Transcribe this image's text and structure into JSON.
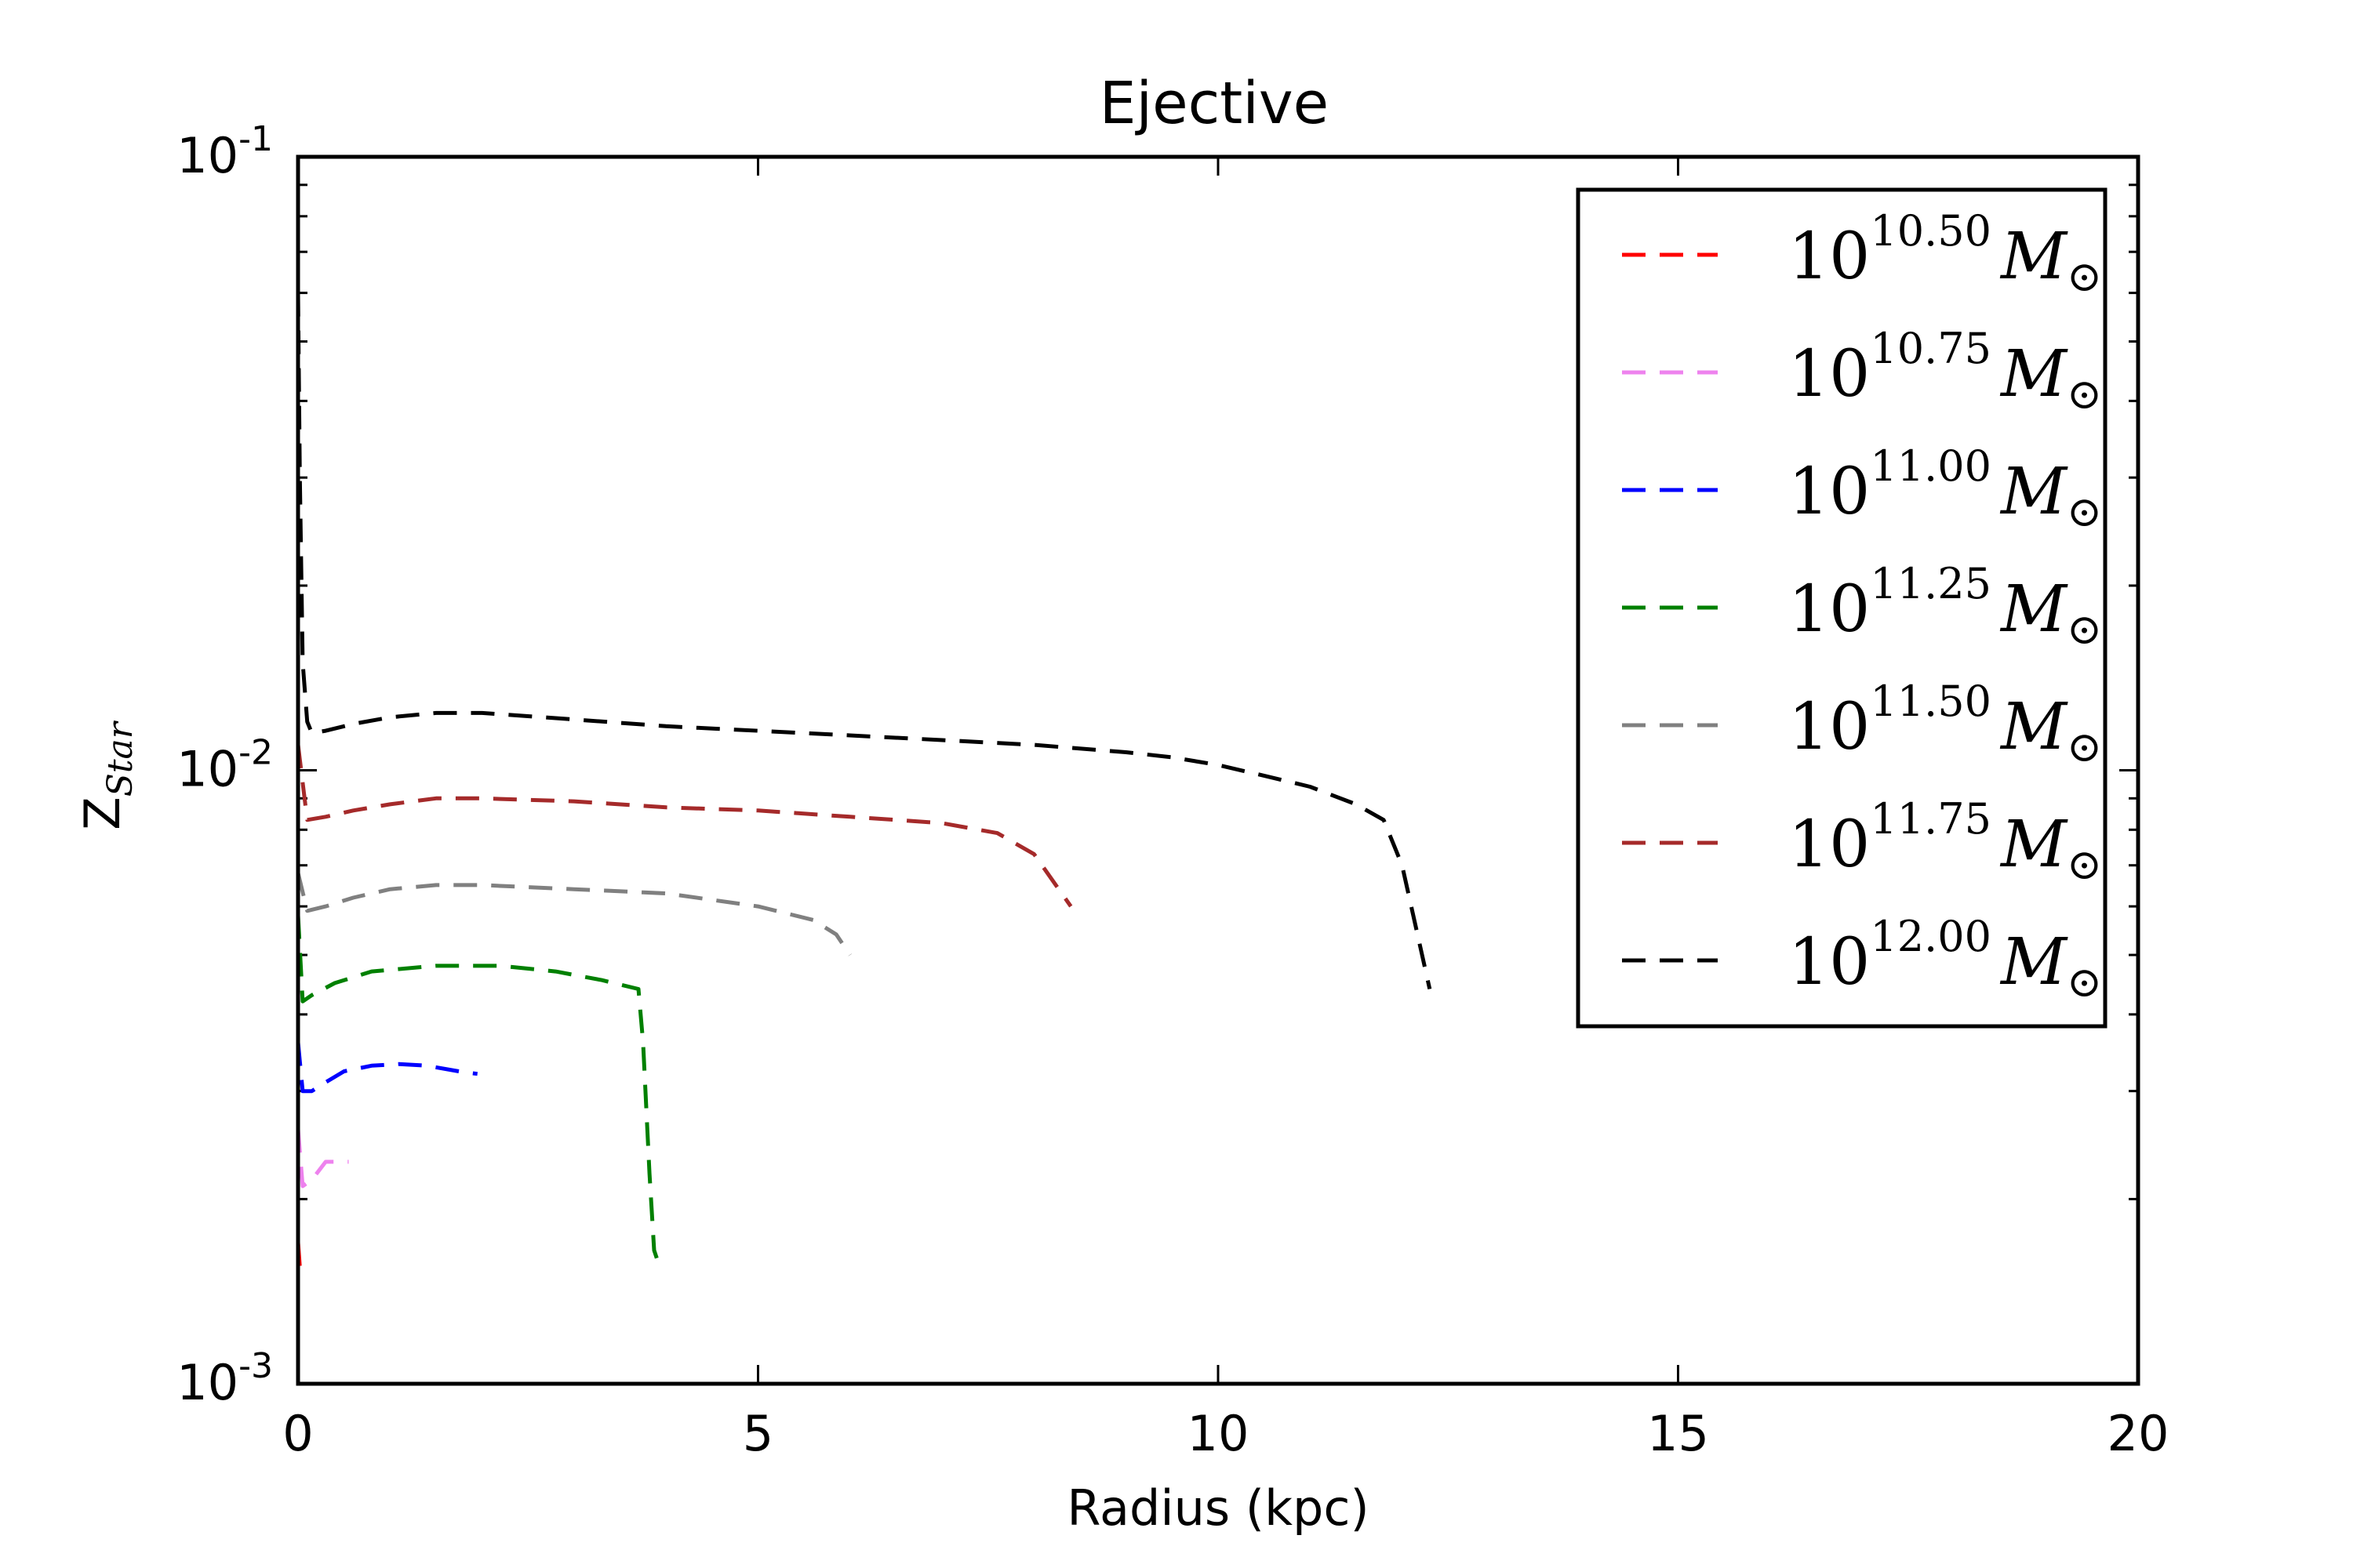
{
  "chart_data": {
    "type": "line",
    "title": "Ejective",
    "xlabel": "Radius (kpc)",
    "ylabel": {
      "base": "Z",
      "subscript": "Star"
    },
    "xlim": [
      0,
      20
    ],
    "ylim": [
      0.001,
      0.1
    ],
    "yscale": "log",
    "x_ticks": [
      {
        "value": 0,
        "label": "0"
      },
      {
        "value": 5,
        "label": "5"
      },
      {
        "value": 10,
        "label": "10"
      },
      {
        "value": 15,
        "label": "15"
      },
      {
        "value": 20,
        "label": "20"
      }
    ],
    "y_ticks": [
      {
        "value": 0.001,
        "base": "10",
        "exp": "-3"
      },
      {
        "value": 0.01,
        "base": "10",
        "exp": "-2"
      },
      {
        "value": 0.1,
        "base": "10",
        "exp": "-1"
      }
    ],
    "grid": false,
    "line_style": "dashed",
    "legend_position": "top-right",
    "series": [
      {
        "name": "10^{10.50} M_⊙",
        "base": "10",
        "exp": "10.50",
        "unit": "M",
        "unit_sub": "⊙",
        "color": "#ff0000",
        "x": [
          0.0,
          0.02,
          0.05
        ],
        "y": [
          0.0017,
          0.00155,
          0.00148
        ]
      },
      {
        "name": "10^{10.75} M_⊙",
        "base": "10",
        "exp": "10.75",
        "unit": "M",
        "unit_sub": "⊙",
        "color": "#ee82ee",
        "x": [
          0.0,
          0.05,
          0.15,
          0.3,
          0.45,
          0.55
        ],
        "y": [
          0.0026,
          0.0021,
          0.00215,
          0.0023,
          0.0023,
          0.0023
        ]
      },
      {
        "name": "10^{11.00} M_⊙",
        "base": "10",
        "exp": "11.00",
        "unit": "M",
        "unit_sub": "⊙",
        "color": "#0000ff",
        "x": [
          0.0,
          0.05,
          0.15,
          0.3,
          0.5,
          0.8,
          1.1,
          1.4,
          1.8,
          1.95
        ],
        "y": [
          0.0036,
          0.003,
          0.003,
          0.0031,
          0.00323,
          0.0033,
          0.00332,
          0.0033,
          0.00322,
          0.0032
        ]
      },
      {
        "name": "10^{11.25} M_⊙",
        "base": "10",
        "exp": "11.25",
        "unit": "M",
        "unit_sub": "⊙",
        "color": "#008000",
        "x": [
          0.0,
          0.05,
          0.15,
          0.4,
          0.8,
          1.5,
          2.2,
          2.8,
          3.3,
          3.7,
          3.75,
          3.82,
          3.87,
          3.9
        ],
        "y": [
          0.0058,
          0.0042,
          0.0043,
          0.0045,
          0.0047,
          0.0048,
          0.0048,
          0.0047,
          0.00455,
          0.0044,
          0.0036,
          0.0022,
          0.00165,
          0.0016
        ]
      },
      {
        "name": "10^{11.50} M_⊙",
        "base": "10",
        "exp": "11.50",
        "unit": "M",
        "unit_sub": "⊙",
        "color": "#808080",
        "x": [
          0.0,
          0.1,
          0.3,
          0.6,
          1.0,
          1.5,
          2.0,
          3.0,
          4.0,
          5.0,
          5.6,
          5.85,
          6.0
        ],
        "y": [
          0.0068,
          0.0059,
          0.006,
          0.0062,
          0.0064,
          0.0065,
          0.0065,
          0.0064,
          0.0063,
          0.006,
          0.0057,
          0.0054,
          0.005
        ]
      },
      {
        "name": "10^{11.75} M_⊙",
        "base": "10",
        "exp": "11.75",
        "unit": "M",
        "unit_sub": "⊙",
        "color": "#a52a2a",
        "x": [
          0.0,
          0.1,
          0.3,
          0.6,
          1.0,
          1.5,
          2.0,
          3.0,
          4.0,
          5.0,
          6.0,
          7.0,
          7.6,
          8.0,
          8.4
        ],
        "y": [
          0.011,
          0.0083,
          0.0084,
          0.0086,
          0.0088,
          0.009,
          0.009,
          0.0089,
          0.0087,
          0.0086,
          0.0084,
          0.0082,
          0.0079,
          0.0073,
          0.006
        ]
      },
      {
        "name": "10^{12.00} M_⊙",
        "base": "10",
        "exp": "12.00",
        "unit": "M",
        "unit_sub": "⊙",
        "color": "#000000",
        "x": [
          0.0,
          0.02,
          0.05,
          0.1,
          0.15,
          0.3,
          0.6,
          1.0,
          1.5,
          2.0,
          3.0,
          4.0,
          5.0,
          6.0,
          7.0,
          8.0,
          9.0,
          9.5,
          10.0,
          10.5,
          11.0,
          11.5,
          11.8,
          12.0,
          12.3
        ],
        "y": [
          0.06,
          0.03,
          0.015,
          0.012,
          0.0115,
          0.0116,
          0.0119,
          0.0122,
          0.0124,
          0.0124,
          0.0121,
          0.0118,
          0.0116,
          0.0114,
          0.0112,
          0.011,
          0.0107,
          0.0105,
          0.0102,
          0.0098,
          0.0094,
          0.0088,
          0.0083,
          0.007,
          0.0044
        ]
      }
    ]
  }
}
